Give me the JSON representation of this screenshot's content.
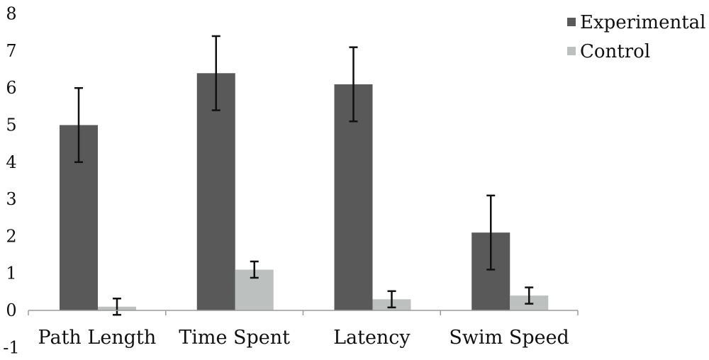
{
  "chart_data": {
    "type": "bar",
    "categories": [
      "Path Length",
      "Time Spent",
      "Latency",
      "Swim Speed"
    ],
    "series": [
      {
        "name": "Experimental",
        "color": "#595959",
        "values": [
          5.0,
          6.4,
          6.1,
          2.1
        ],
        "error": [
          1.0,
          1.0,
          1.0,
          1.0
        ]
      },
      {
        "name": "Control",
        "color": "#BCC1C0",
        "values": [
          0.1,
          1.1,
          0.3,
          0.4
        ],
        "error": [
          0.22,
          0.22,
          0.22,
          0.22
        ]
      }
    ],
    "yticks": [
      "8",
      "7",
      "6",
      "5",
      "4",
      "3",
      "2",
      "1",
      "0",
      "-1"
    ],
    "ylim": [
      -1,
      8
    ],
    "legend_position": "top-right",
    "grid": false
  }
}
